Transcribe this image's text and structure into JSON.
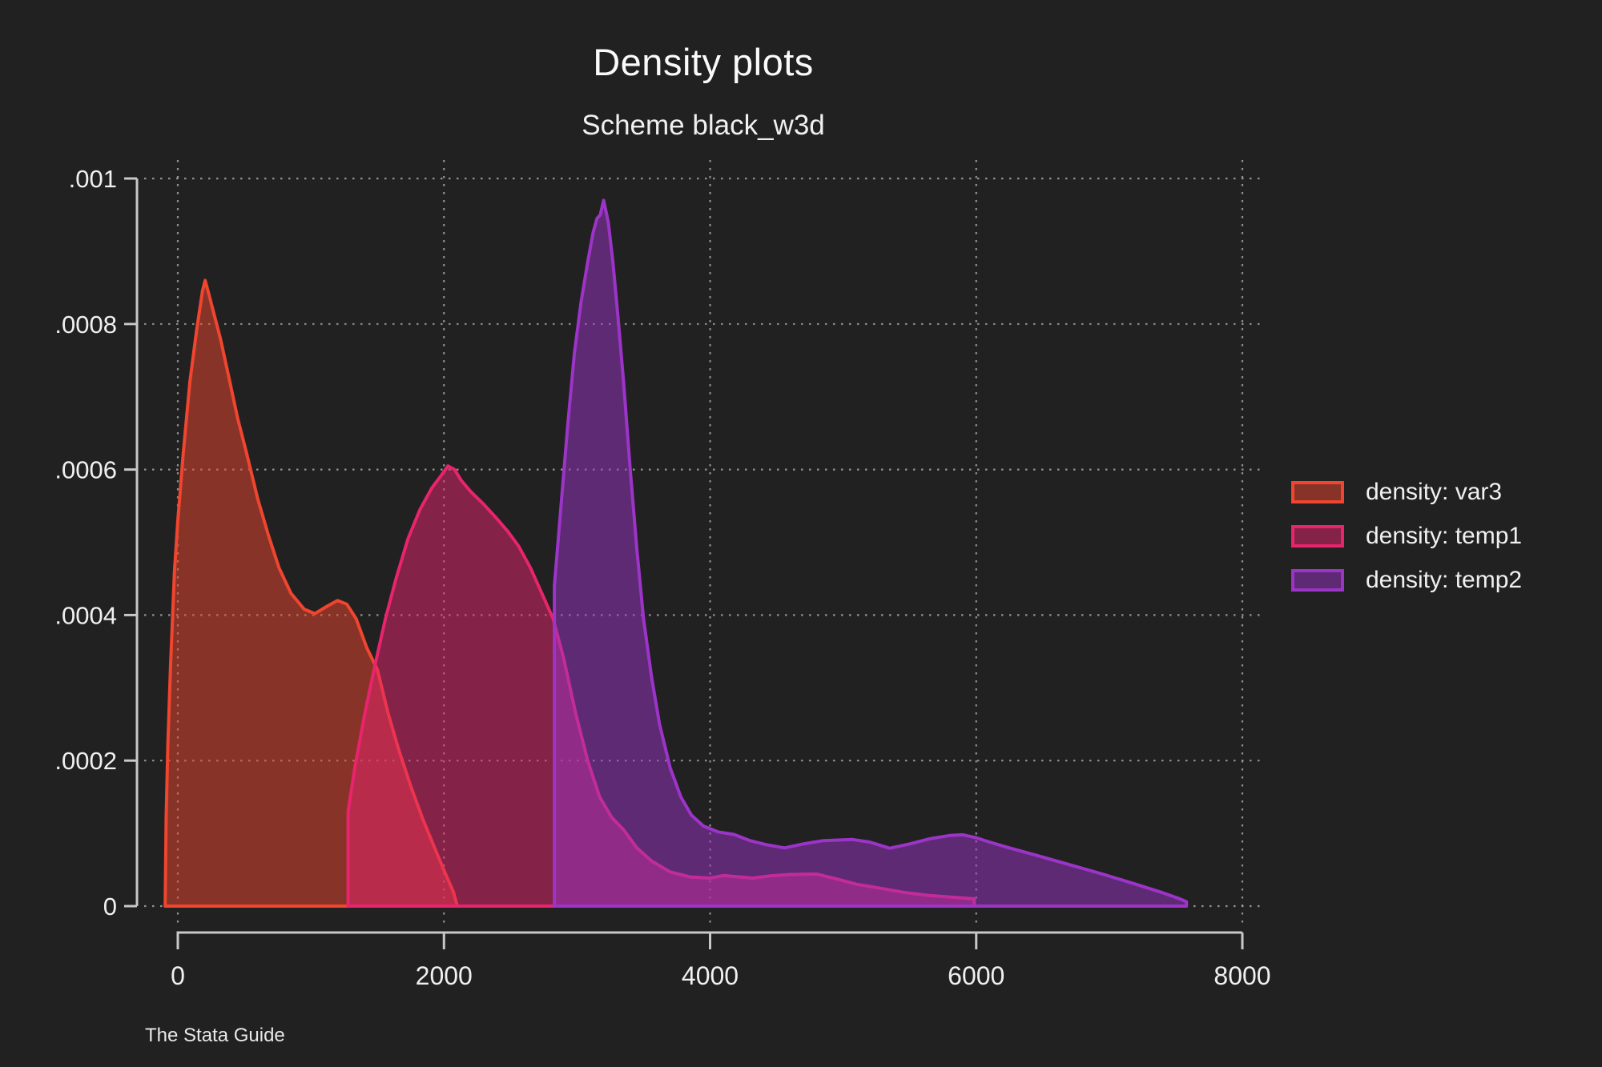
{
  "title": "Density plots",
  "subtitle": "Scheme black_w3d",
  "caption": "The Stata Guide",
  "theme": {
    "background": "#212121",
    "text_color": "#f0f0f0",
    "axis_color": "#c8c8c8",
    "grid_color": "#a6a6a6"
  },
  "chart_data": {
    "type": "area",
    "title": "Density plots",
    "subtitle": "Scheme black_w3d",
    "xlabel": "",
    "ylabel": "",
    "xlim": [
      0,
      8000
    ],
    "ylim": [
      0,
      0.001
    ],
    "x_ticks": [
      0,
      2000,
      4000,
      6000,
      8000
    ],
    "x_tick_labels": [
      "0",
      "2000",
      "4000",
      "6000",
      "8000"
    ],
    "y_ticks": [
      0,
      0.0002,
      0.0004,
      0.0006,
      0.0008,
      0.001
    ],
    "y_tick_labels": [
      "0",
      ".0002",
      ".0004",
      ".0006",
      ".0008",
      ".001"
    ],
    "grid": "dotted-both",
    "legend_position": "right",
    "fill_opacity": 0.5,
    "series": [
      {
        "name": "density: var3",
        "color": "#f0452f",
        "points": [
          [
            -95,
            0
          ],
          [
            -88,
            0.00012
          ],
          [
            -75,
            0.00022
          ],
          [
            -55,
            0.00033
          ],
          [
            -25,
            0.00046
          ],
          [
            0,
            0.00053
          ],
          [
            40,
            0.00062
          ],
          [
            90,
            0.00072
          ],
          [
            140,
            0.00079
          ],
          [
            185,
            0.000845
          ],
          [
            205,
            0.00086
          ],
          [
            235,
            0.00084
          ],
          [
            270,
            0.000815
          ],
          [
            320,
            0.00078
          ],
          [
            380,
            0.00073
          ],
          [
            450,
            0.00067
          ],
          [
            520,
            0.00062
          ],
          [
            600,
            0.00056
          ],
          [
            680,
            0.00051
          ],
          [
            760,
            0.000465
          ],
          [
            850,
            0.00043
          ],
          [
            950,
            0.000408
          ],
          [
            1030,
            0.000402
          ],
          [
            1120,
            0.000412
          ],
          [
            1200,
            0.00042
          ],
          [
            1270,
            0.000415
          ],
          [
            1340,
            0.000395
          ],
          [
            1420,
            0.000355
          ],
          [
            1500,
            0.000325
          ],
          [
            1580,
            0.000265
          ],
          [
            1660,
            0.000215
          ],
          [
            1750,
            0.000165
          ],
          [
            1840,
            0.00012
          ],
          [
            1930,
            8e-05
          ],
          [
            2010,
            4.5e-05
          ],
          [
            2070,
            2e-05
          ],
          [
            2100,
            0
          ]
        ]
      },
      {
        "name": "density: temp1",
        "color": "#e8246d",
        "points": [
          [
            1280,
            0
          ],
          [
            1280,
            0.00013
          ],
          [
            1330,
            0.00019
          ],
          [
            1400,
            0.00026
          ],
          [
            1480,
            0.00033
          ],
          [
            1560,
            0.000395
          ],
          [
            1640,
            0.00045
          ],
          [
            1730,
            0.000505
          ],
          [
            1820,
            0.000545
          ],
          [
            1910,
            0.000575
          ],
          [
            1980,
            0.000592
          ],
          [
            2030,
            0.000605
          ],
          [
            2080,
            0.0006
          ],
          [
            2130,
            0.000585
          ],
          [
            2200,
            0.00057
          ],
          [
            2300,
            0.000552
          ],
          [
            2400,
            0.000532
          ],
          [
            2480,
            0.000515
          ],
          [
            2560,
            0.000495
          ],
          [
            2650,
            0.000465
          ],
          [
            2740,
            0.000428
          ],
          [
            2820,
            0.000395
          ],
          [
            2900,
            0.00034
          ],
          [
            2990,
            0.000265
          ],
          [
            3080,
            0.0002
          ],
          [
            3170,
            0.00015
          ],
          [
            3260,
            0.000122
          ],
          [
            3350,
            0.000105
          ],
          [
            3450,
            8e-05
          ],
          [
            3560,
            6.2e-05
          ],
          [
            3700,
            4.7e-05
          ],
          [
            3850,
            4e-05
          ],
          [
            4000,
            3.85e-05
          ],
          [
            4100,
            4.2e-05
          ],
          [
            4200,
            4.05e-05
          ],
          [
            4320,
            3.85e-05
          ],
          [
            4450,
            4.15e-05
          ],
          [
            4600,
            4.35e-05
          ],
          [
            4800,
            4.4e-05
          ],
          [
            4950,
            3.75e-05
          ],
          [
            5100,
            3e-05
          ],
          [
            5250,
            2.55e-05
          ],
          [
            5450,
            1.9e-05
          ],
          [
            5650,
            1.45e-05
          ],
          [
            5800,
            1.25e-05
          ],
          [
            5985,
            1e-05
          ],
          [
            5985,
            0
          ]
        ]
      },
      {
        "name": "density: temp2",
        "color": "#9c34c8",
        "points": [
          [
            2830,
            0
          ],
          [
            2830,
            0.00044
          ],
          [
            2880,
            0.00055
          ],
          [
            2930,
            0.00066
          ],
          [
            2980,
            0.00076
          ],
          [
            3030,
            0.00083
          ],
          [
            3080,
            0.000885
          ],
          [
            3120,
            0.000925
          ],
          [
            3150,
            0.000945
          ],
          [
            3175,
            0.00095
          ],
          [
            3200,
            0.00097
          ],
          [
            3235,
            0.00094
          ],
          [
            3270,
            0.000885
          ],
          [
            3310,
            0.000805
          ],
          [
            3350,
            0.00072
          ],
          [
            3400,
            0.0006
          ],
          [
            3450,
            0.00049
          ],
          [
            3500,
            0.000395
          ],
          [
            3560,
            0.000315
          ],
          [
            3620,
            0.00025
          ],
          [
            3700,
            0.00019
          ],
          [
            3780,
            0.00015
          ],
          [
            3860,
            0.000125
          ],
          [
            3950,
            0.00011
          ],
          [
            4060,
            0.000102
          ],
          [
            4180,
            9.85e-05
          ],
          [
            4300,
            9e-05
          ],
          [
            4420,
            8.45e-05
          ],
          [
            4560,
            8e-05
          ],
          [
            4700,
            8.55e-05
          ],
          [
            4850,
            9e-05
          ],
          [
            5070,
            9.15e-05
          ],
          [
            5200,
            8.8e-05
          ],
          [
            5350,
            7.95e-05
          ],
          [
            5500,
            8.55e-05
          ],
          [
            5650,
            9.25e-05
          ],
          [
            5800,
            9.7e-05
          ],
          [
            5900,
            9.8e-05
          ],
          [
            6000,
            9.4e-05
          ],
          [
            6100,
            8.8e-05
          ],
          [
            6250,
            8e-05
          ],
          [
            6450,
            7e-05
          ],
          [
            6700,
            5.7e-05
          ],
          [
            6950,
            4.4e-05
          ],
          [
            7200,
            3e-05
          ],
          [
            7400,
            1.85e-05
          ],
          [
            7530,
            1e-05
          ],
          [
            7580,
            6e-06
          ],
          [
            7580,
            0
          ]
        ]
      }
    ]
  }
}
